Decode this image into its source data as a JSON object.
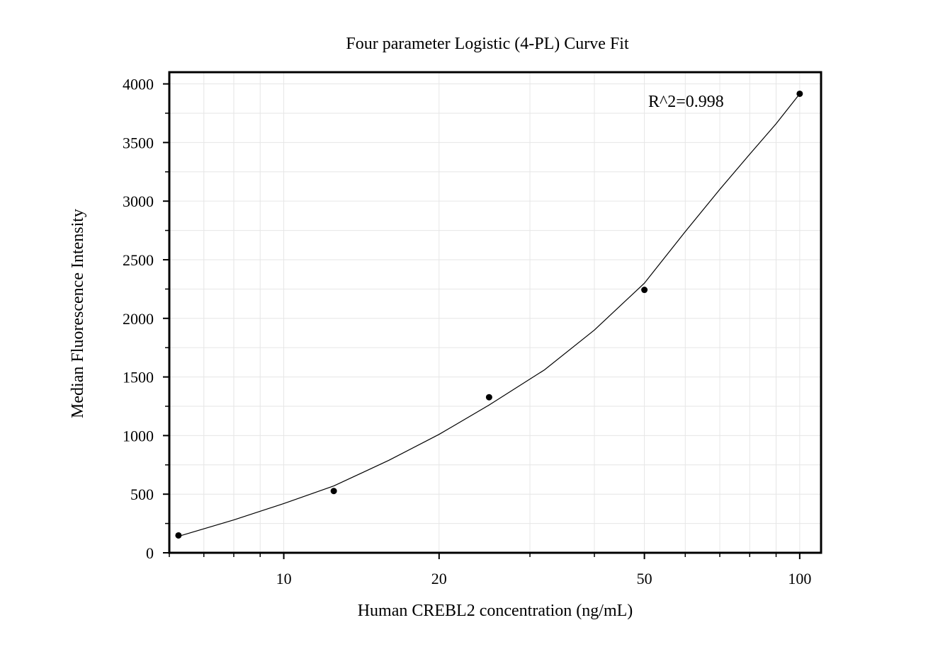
{
  "chart_data": {
    "type": "scatter",
    "title": "Four parameter Logistic (4-PL) Curve Fit",
    "xlabel": "Human CREBL2 concentration (ng/mL)",
    "ylabel": "Median Fluorescence Intensity",
    "x_scale": "log",
    "xlim": [
      6,
      110
    ],
    "ylim": [
      0,
      4100
    ],
    "x_ticks": [
      10,
      20,
      50,
      100
    ],
    "x_tick_labels": [
      "10",
      "20",
      "50",
      "100"
    ],
    "y_ticks": [
      0,
      500,
      1000,
      1500,
      2000,
      2500,
      3000,
      3500,
      4000
    ],
    "y_tick_labels": [
      "0",
      "500",
      "1000",
      "1500",
      "2000",
      "2500",
      "3000",
      "3500",
      "4000"
    ],
    "grid": true,
    "annotation": "R^2=0.998",
    "series": [
      {
        "type": "scatter",
        "x": [
          6.25,
          12.5,
          25,
          50,
          100
        ],
        "y": [
          148,
          527,
          1327,
          2243,
          3916
        ]
      },
      {
        "type": "line",
        "x": [
          6.25,
          8,
          10,
          12.5,
          16,
          20,
          25,
          32,
          40,
          50,
          60,
          70,
          80,
          90,
          100
        ],
        "y": [
          140,
          280,
          420,
          570,
          790,
          1010,
          1260,
          1560,
          1900,
          2300,
          2740,
          3100,
          3400,
          3660,
          3916
        ]
      }
    ]
  }
}
